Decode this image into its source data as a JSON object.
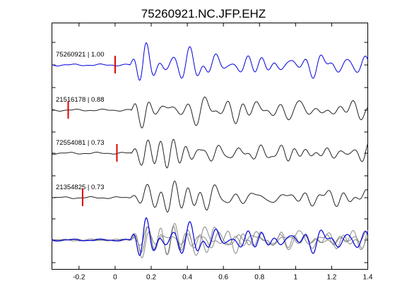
{
  "chart_data": {
    "type": "line",
    "title": "75260921.NC.JFP.EHZ",
    "xlim": [
      -0.35,
      1.4
    ],
    "xticks": [
      "-0.2",
      "0",
      "0.2",
      "0.4",
      "0.6",
      "0.8",
      "1",
      "1.2",
      "1.4"
    ],
    "xtick_values": [
      -0.2,
      0,
      0.2,
      0.4,
      0.6,
      0.8,
      1.0,
      1.2,
      1.4
    ],
    "grid": false,
    "colors": {
      "reference": "#0000dd",
      "trace": "#222222",
      "overlay": "#888888",
      "pick": "#dd0000"
    },
    "traces": [
      {
        "event": "75260921",
        "cc": "1.00",
        "label": "75260921 | 1.00",
        "pick": 0.0,
        "onset": 0.08,
        "color": "reference"
      },
      {
        "event": "21516178",
        "cc": "0.88",
        "label": "21516178 | 0.88",
        "pick": -0.26,
        "onset": 0.09,
        "color": "trace"
      },
      {
        "event": "72554081",
        "cc": "0.73",
        "label": "72554081 | 0.73",
        "pick": 0.01,
        "onset": 0.09,
        "color": "trace"
      },
      {
        "event": "21354825",
        "cc": "0.73",
        "label": "21354825 | 0.73",
        "pick": -0.18,
        "onset": 0.08,
        "color": "trace"
      }
    ],
    "stack": {
      "overlay_traces": 4,
      "reference_on_top": true
    }
  }
}
